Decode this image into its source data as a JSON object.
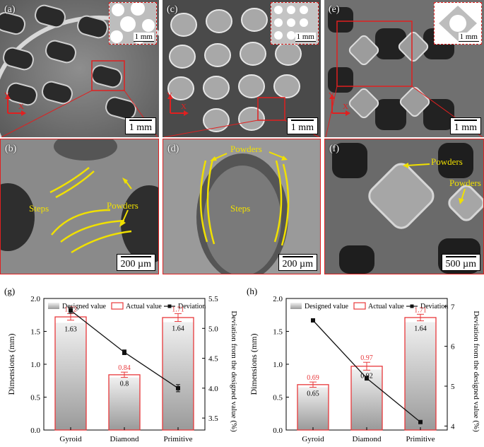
{
  "panels": {
    "a": {
      "label": "(a)",
      "scale": "1 mm",
      "inset_scale": "1 mm",
      "axes": [
        "Y",
        "X"
      ]
    },
    "b": {
      "label": "(b)",
      "scale": "200 µm",
      "annotations": [
        "Steps",
        "Powders"
      ]
    },
    "c": {
      "label": "(c)",
      "scale": "1 mm",
      "inset_scale": "1 mm",
      "axes": [
        "Y",
        "X"
      ]
    },
    "d": {
      "label": "(d)",
      "scale": "200 µm",
      "annotations": [
        "Powders",
        "Steps"
      ]
    },
    "e": {
      "label": "(e)",
      "scale": "1 mm",
      "inset_scale": "1 mm",
      "axes": [
        "Y",
        "X"
      ]
    },
    "f": {
      "label": "(f)",
      "scale": "500 µm",
      "annotations": [
        "Powders",
        "Powders"
      ]
    }
  },
  "colors": {
    "actual": "#e8383b",
    "deviation": "#111111",
    "designed_top": "#f0f0f0",
    "designed_bottom": "#9a9a9a",
    "annotation": "#f0e000"
  },
  "chart_data": [
    {
      "panel_label": "(g)",
      "type": "bar",
      "categories": [
        "Gyroid",
        "Diamond",
        "Primitive"
      ],
      "series": [
        {
          "name": "Designed value",
          "values": [
            1.63,
            0.8,
            1.64
          ]
        },
        {
          "name": "Actual value",
          "values": [
            1.72,
            0.84,
            1.71
          ],
          "errors": [
            0.05,
            0.04,
            0.06
          ]
        }
      ],
      "line_series": {
        "name": "Deviation",
        "values": [
          5.3,
          4.6,
          4.0
        ],
        "errors": [
          0.05,
          0.04,
          0.06
        ]
      },
      "ylabel": "Dimensions (mm)",
      "y2label": "Deviation from the designed value (%)",
      "ylim": [
        0,
        2.0
      ],
      "y2lim": [
        3.3,
        5.5
      ],
      "yticks": [
        "0.0",
        "0.5",
        "1.0",
        "1.5",
        "2.0"
      ],
      "y2ticks": [
        "3.5",
        "4.0",
        "4.5",
        "5.0",
        "5.5"
      ],
      "legend": "top"
    },
    {
      "panel_label": "(h)",
      "type": "bar",
      "categories": [
        "Gyroid",
        "Diamond",
        "Primitive"
      ],
      "series": [
        {
          "name": "Designed value",
          "values": [
            0.65,
            0.92,
            1.64
          ]
        },
        {
          "name": "Actual value",
          "values": [
            0.69,
            0.97,
            1.71
          ],
          "errors": [
            0.04,
            0.06,
            0.05
          ]
        }
      ],
      "line_series": {
        "name": "Deviation",
        "values": [
          6.65,
          5.2,
          4.1
        ],
        "errors": [
          0.03,
          0.05,
          0.03
        ]
      },
      "ylabel": "Dimensions (mm)",
      "y2label": "Deviation from the designed value (%)",
      "ylim": [
        0,
        2.0
      ],
      "y2lim": [
        3.9,
        7.2
      ],
      "yticks": [
        "0.0",
        "0.5",
        "1.0",
        "1.5",
        "2.0"
      ],
      "y2ticks": [
        "4",
        "5",
        "6",
        "7"
      ],
      "legend": "top"
    }
  ]
}
